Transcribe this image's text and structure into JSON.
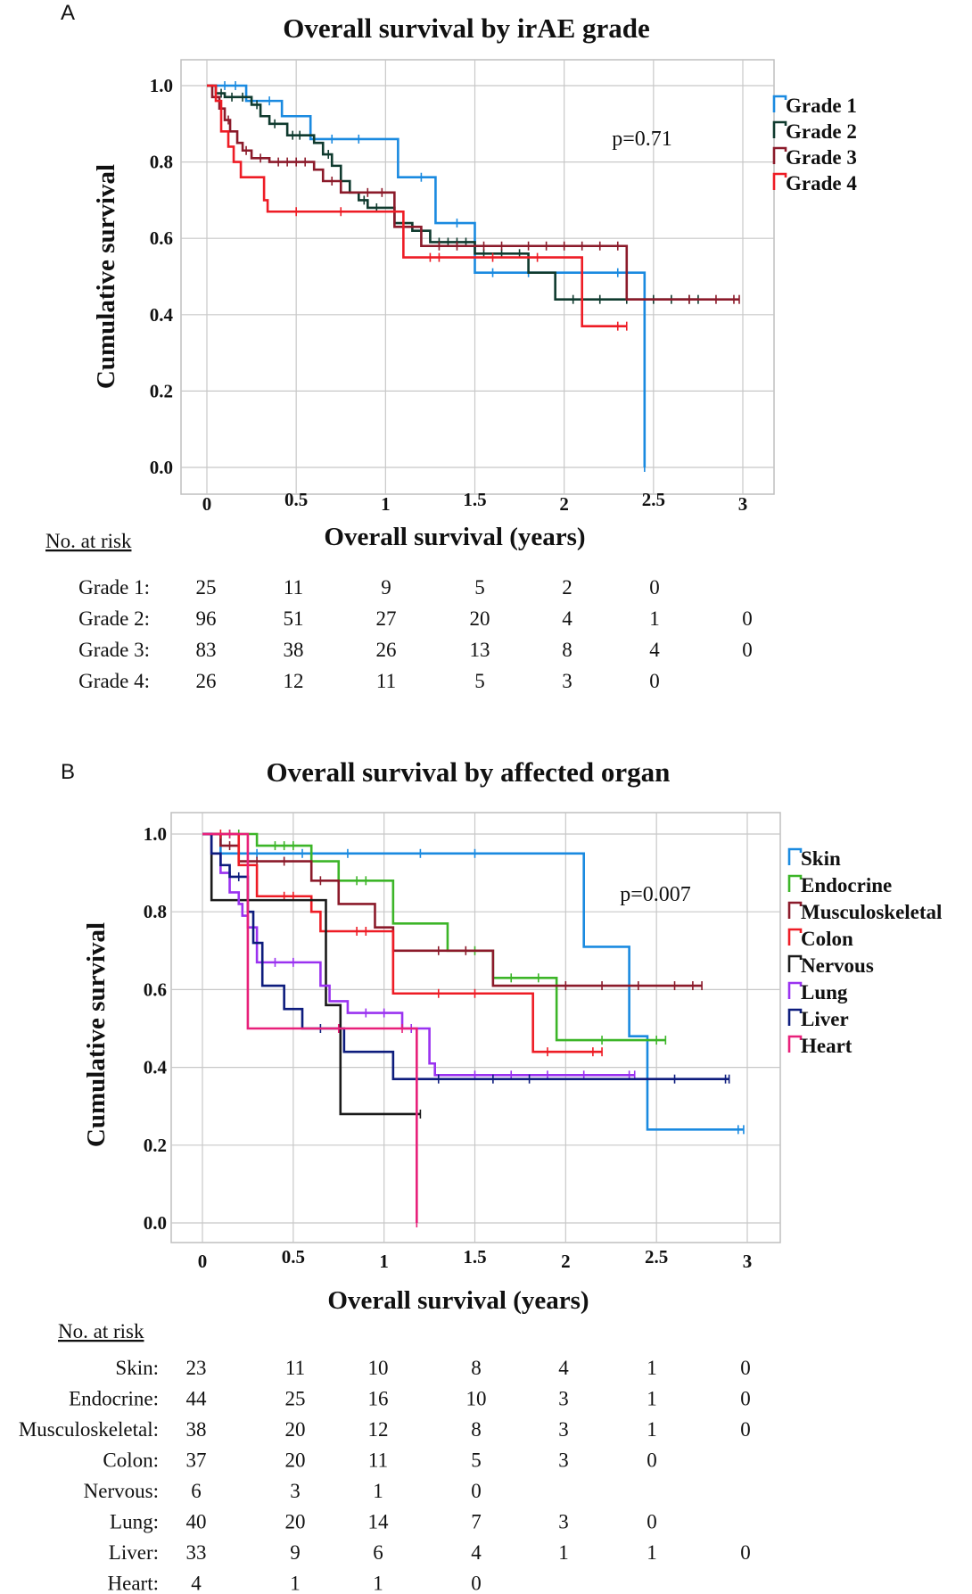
{
  "chart_data": [
    {
      "type": "line",
      "subtype": "kaplan-meier",
      "panel": "A",
      "title": "Overall survival by irAE grade",
      "xlabel": "Overall survival (years)",
      "ylabel": "Cumulative survival",
      "x_ticks": [
        "0",
        "0.5",
        "1",
        "1.5",
        "2",
        "2.5",
        "3"
      ],
      "y_ticks": [
        "0.0",
        "0.2",
        "0.4",
        "0.6",
        "0.8",
        "1.0"
      ],
      "xlim": [
        0,
        3
      ],
      "ylim": [
        0,
        1
      ],
      "grid": true,
      "legend_position": "right",
      "annotation": "p=0.71",
      "series": [
        {
          "name": "Grade 1",
          "color": "#1a8ae0",
          "steps": [
            [
              0,
              1.0
            ],
            [
              0.22,
              0.96
            ],
            [
              0.42,
              0.92
            ],
            [
              0.58,
              0.86
            ],
            [
              1.07,
              0.76
            ],
            [
              1.28,
              0.64
            ],
            [
              1.5,
              0.51
            ],
            [
              2.45,
              0.0
            ]
          ],
          "end": 2.45,
          "censors": [
            0.1,
            0.16,
            0.35,
            0.7,
            0.85,
            1.2,
            1.4,
            1.6,
            1.8,
            2.1,
            2.3
          ]
        },
        {
          "name": "Grade 2",
          "color": "#0f3a2e",
          "steps": [
            [
              0,
              1.0
            ],
            [
              0.05,
              0.98
            ],
            [
              0.1,
              0.97
            ],
            [
              0.25,
              0.95
            ],
            [
              0.3,
              0.92
            ],
            [
              0.35,
              0.9
            ],
            [
              0.45,
              0.87
            ],
            [
              0.6,
              0.85
            ],
            [
              0.65,
              0.82
            ],
            [
              0.7,
              0.79
            ],
            [
              0.75,
              0.75
            ],
            [
              0.8,
              0.72
            ],
            [
              0.85,
              0.7
            ],
            [
              0.9,
              0.68
            ],
            [
              1.05,
              0.64
            ],
            [
              1.15,
              0.62
            ],
            [
              1.25,
              0.59
            ],
            [
              1.5,
              0.56
            ],
            [
              1.8,
              0.51
            ],
            [
              1.95,
              0.44
            ]
          ],
          "end": 2.75,
          "censors": [
            0.08,
            0.14,
            0.2,
            0.28,
            0.38,
            0.48,
            0.52,
            0.68,
            0.88,
            0.95,
            1.1,
            1.3,
            1.35,
            1.4,
            1.45,
            1.55,
            1.65,
            1.75,
            2.05,
            2.2,
            2.35,
            2.5,
            2.6,
            2.7
          ]
        },
        {
          "name": "Grade 3",
          "color": "#8b1a2a",
          "steps": [
            [
              0,
              1.0
            ],
            [
              0.03,
              0.97
            ],
            [
              0.07,
              0.94
            ],
            [
              0.1,
              0.91
            ],
            [
              0.13,
              0.88
            ],
            [
              0.17,
              0.85
            ],
            [
              0.2,
              0.83
            ],
            [
              0.25,
              0.81
            ],
            [
              0.35,
              0.8
            ],
            [
              0.6,
              0.78
            ],
            [
              0.65,
              0.75
            ],
            [
              0.75,
              0.72
            ],
            [
              1.05,
              0.63
            ],
            [
              1.2,
              0.58
            ],
            [
              2.35,
              0.44
            ]
          ],
          "end": 2.98,
          "censors": [
            0.12,
            0.22,
            0.3,
            0.4,
            0.45,
            0.5,
            0.55,
            0.7,
            0.9,
            0.98,
            1.3,
            1.4,
            1.55,
            1.65,
            1.8,
            1.9,
            2.0,
            2.1,
            2.2,
            2.3,
            2.7,
            2.85,
            2.95
          ]
        },
        {
          "name": "Grade 4",
          "color": "#ee1c25",
          "steps": [
            [
              0,
              1.0
            ],
            [
              0.05,
              0.96
            ],
            [
              0.08,
              0.88
            ],
            [
              0.12,
              0.84
            ],
            [
              0.15,
              0.8
            ],
            [
              0.19,
              0.76
            ],
            [
              0.32,
              0.7
            ],
            [
              0.34,
              0.67
            ],
            [
              1.1,
              0.55
            ],
            [
              2.1,
              0.37
            ]
          ],
          "end": 2.35,
          "censors": [
            0.5,
            0.75,
            1.25,
            1.3,
            1.6,
            1.85,
            2.3
          ]
        }
      ],
      "risk_table": {
        "heading": "No. at risk",
        "rows": [
          {
            "label": "Grade 1:",
            "values": [
              "25",
              "11",
              "9",
              "5",
              "2",
              "0",
              ""
            ]
          },
          {
            "label": "Grade 2:",
            "values": [
              "96",
              "51",
              "27",
              "20",
              "4",
              "1",
              "0"
            ]
          },
          {
            "label": "Grade 3:",
            "values": [
              "83",
              "38",
              "26",
              "13",
              "8",
              "4",
              "0"
            ]
          },
          {
            "label": "Grade 4:",
            "values": [
              "26",
              "12",
              "11",
              "5",
              "3",
              "0",
              ""
            ]
          }
        ]
      }
    },
    {
      "type": "line",
      "subtype": "kaplan-meier",
      "panel": "B",
      "title": "Overall survival by affected organ",
      "xlabel": "Overall survival (years)",
      "ylabel": "Cumulative survival",
      "x_ticks": [
        "0",
        "0.5",
        "1",
        "1.5",
        "2",
        "2.5",
        "3"
      ],
      "y_ticks": [
        "0.0",
        "0.2",
        "0.4",
        "0.6",
        "0.8",
        "1.0"
      ],
      "xlim": [
        0,
        3
      ],
      "ylim": [
        0,
        1
      ],
      "grid": true,
      "legend_position": "right",
      "annotation": "p=0.007",
      "series": [
        {
          "name": "Skin",
          "color": "#1a8ae0",
          "steps": [
            [
              0,
              1.0
            ],
            [
              0.1,
              0.95
            ],
            [
              2.1,
              0.71
            ],
            [
              2.35,
              0.48
            ],
            [
              2.45,
              0.24
            ]
          ],
          "end": 2.98,
          "censors": [
            0.3,
            0.55,
            0.8,
            1.2,
            1.5,
            2.95
          ]
        },
        {
          "name": "Endocrine",
          "color": "#3cb528",
          "steps": [
            [
              0,
              1.0
            ],
            [
              0.3,
              0.97
            ],
            [
              0.6,
              0.93
            ],
            [
              0.75,
              0.88
            ],
            [
              1.05,
              0.77
            ],
            [
              1.35,
              0.7
            ],
            [
              1.6,
              0.63
            ],
            [
              1.95,
              0.47
            ]
          ],
          "end": 2.55,
          "censors": [
            0.15,
            0.2,
            0.4,
            0.45,
            0.5,
            0.85,
            0.9,
            1.5,
            1.7,
            1.85,
            2.2,
            2.5
          ]
        },
        {
          "name": "Musculoskeletal",
          "color": "#8b1a2a",
          "steps": [
            [
              0,
              1.0
            ],
            [
              0.1,
              0.97
            ],
            [
              0.2,
              0.93
            ],
            [
              0.6,
              0.88
            ],
            [
              0.75,
              0.82
            ],
            [
              0.95,
              0.76
            ],
            [
              1.05,
              0.7
            ],
            [
              1.6,
              0.61
            ]
          ],
          "end": 2.75,
          "censors": [
            0.15,
            0.3,
            0.45,
            0.65,
            1.3,
            1.45,
            2.0,
            2.2,
            2.4,
            2.6,
            2.7
          ]
        },
        {
          "name": "Colon",
          "color": "#ee1c25",
          "steps": [
            [
              0,
              1.0
            ],
            [
              0.2,
              0.92
            ],
            [
              0.3,
              0.84
            ],
            [
              0.6,
              0.8
            ],
            [
              0.65,
              0.75
            ],
            [
              1.05,
              0.59
            ],
            [
              1.82,
              0.44
            ]
          ],
          "end": 2.2,
          "censors": [
            0.1,
            0.45,
            0.5,
            0.85,
            0.9,
            1.3,
            1.5,
            1.9,
            2.15
          ]
        },
        {
          "name": "Nervous",
          "color": "#1a1a1a",
          "steps": [
            [
              0,
              1.0
            ],
            [
              0.05,
              0.83
            ],
            [
              0.68,
              0.56
            ],
            [
              0.76,
              0.28
            ]
          ],
          "end": 1.2,
          "censors": [
            1.18
          ]
        },
        {
          "name": "Lung",
          "color": "#9a32f0",
          "steps": [
            [
              0,
              1.0
            ],
            [
              0.05,
              0.95
            ],
            [
              0.1,
              0.9
            ],
            [
              0.15,
              0.85
            ],
            [
              0.2,
              0.82
            ],
            [
              0.22,
              0.79
            ],
            [
              0.25,
              0.76
            ],
            [
              0.3,
              0.67
            ],
            [
              0.65,
              0.61
            ],
            [
              0.7,
              0.57
            ],
            [
              0.8,
              0.54
            ],
            [
              1.1,
              0.5
            ],
            [
              1.25,
              0.41
            ],
            [
              1.28,
              0.38
            ]
          ],
          "end": 2.38,
          "censors": [
            0.4,
            0.5,
            0.9,
            1.0,
            1.15,
            1.5,
            1.7,
            1.9,
            2.1,
            2.35
          ]
        },
        {
          "name": "Liver",
          "color": "#0d1c7d",
          "steps": [
            [
              0,
              1.0
            ],
            [
              0.05,
              0.95
            ],
            [
              0.1,
              0.92
            ],
            [
              0.15,
              0.89
            ],
            [
              0.25,
              0.8
            ],
            [
              0.28,
              0.72
            ],
            [
              0.33,
              0.61
            ],
            [
              0.45,
              0.55
            ],
            [
              0.55,
              0.5
            ],
            [
              0.78,
              0.44
            ],
            [
              1.05,
              0.37
            ]
          ],
          "end": 2.9,
          "censors": [
            0.2,
            0.65,
            1.3,
            1.6,
            1.8,
            2.6,
            2.88
          ]
        },
        {
          "name": "Heart",
          "color": "#e8207a",
          "steps": [
            [
              0,
              1.0
            ],
            [
              0.25,
              0.5
            ],
            [
              1.18,
              0.0
            ]
          ],
          "end": 1.18,
          "censors": [
            0.15,
            0.75,
            1.1
          ]
        }
      ],
      "risk_table": {
        "heading": "No. at risk",
        "rows": [
          {
            "label": "Skin:",
            "values": [
              "23",
              "11",
              "10",
              "8",
              "4",
              "1",
              "0"
            ]
          },
          {
            "label": "Endocrine:",
            "values": [
              "44",
              "25",
              "16",
              "10",
              "3",
              "1",
              "0"
            ]
          },
          {
            "label": "Musculoskeletal:",
            "values": [
              "38",
              "20",
              "12",
              "8",
              "3",
              "1",
              "0"
            ]
          },
          {
            "label": "Colon:",
            "values": [
              "37",
              "20",
              "11",
              "5",
              "3",
              "0",
              ""
            ]
          },
          {
            "label": "Nervous:",
            "values": [
              "6",
              "3",
              "1",
              "0",
              "",
              "",
              ""
            ]
          },
          {
            "label": "Lung:",
            "values": [
              "40",
              "20",
              "14",
              "7",
              "3",
              "0",
              ""
            ]
          },
          {
            "label": "Liver:",
            "values": [
              "33",
              "9",
              "6",
              "4",
              "1",
              "1",
              "0"
            ]
          },
          {
            "label": "Heart:",
            "values": [
              "4",
              "1",
              "1",
              "0",
              "",
              "",
              ""
            ]
          }
        ]
      }
    }
  ]
}
